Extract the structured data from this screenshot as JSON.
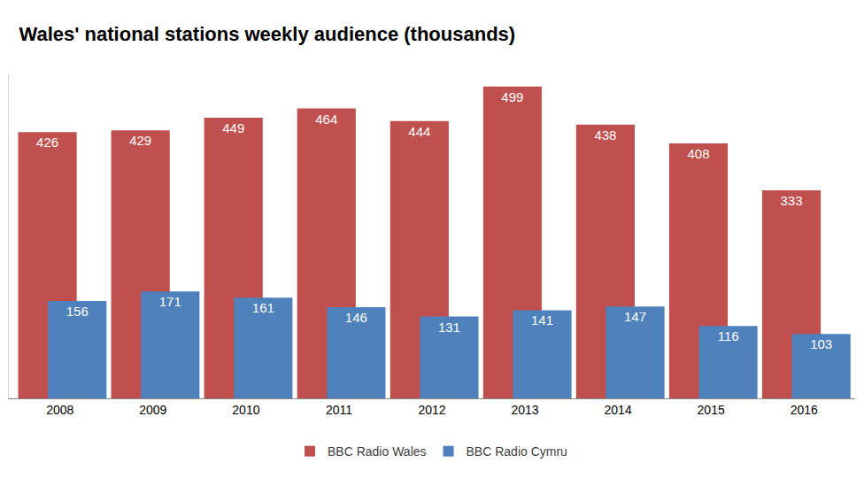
{
  "chart_data": {
    "type": "bar",
    "title": "Wales' national stations weekly audience (thousands)",
    "categories": [
      "2008",
      "2009",
      "2010",
      "2011",
      "2012",
      "2013",
      "2014",
      "2015",
      "2016"
    ],
    "series": [
      {
        "name": "BBC Radio Wales",
        "color": "#c0504d",
        "values": [
          426,
          429,
          449,
          464,
          444,
          499,
          438,
          408,
          333
        ]
      },
      {
        "name": "BBC Radio Cymru",
        "color": "#4f81bd",
        "values": [
          156,
          171,
          161,
          146,
          131,
          141,
          147,
          116,
          103
        ]
      }
    ],
    "ylim": [
      0,
      520
    ],
    "grid": false,
    "legend": "bottom",
    "data_labels": true,
    "tick_labels": "x"
  }
}
